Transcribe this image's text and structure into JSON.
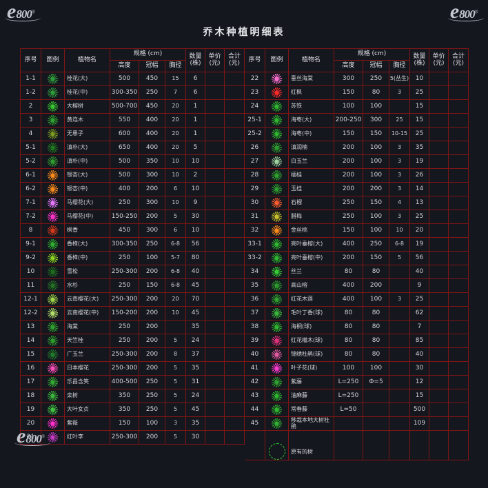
{
  "title": "乔木种植明细表",
  "watermark": {
    "e": "e",
    "num": "800",
    "reg": "®"
  },
  "columns": {
    "no": "序号",
    "legend": "图例",
    "name": "植物名",
    "spec": "规格 (cm)",
    "height": "高度",
    "crown": "冠幅",
    "dbh": "胸径",
    "qty": "数量\n(株)",
    "price": "单价\n(元)",
    "total": "合计\n(元)"
  },
  "row_fields": [
    "no",
    "name",
    "height",
    "crown",
    "dbh",
    "qty",
    "symbol_color",
    "symbol_type"
  ],
  "left_rows": [
    [
      "1-1",
      "桂花(大)",
      "500",
      "450",
      "15",
      "6",
      "#2e9b3a",
      "burst"
    ],
    [
      "1-2",
      "桂花(中)",
      "300-350",
      "250",
      "7",
      "6",
      "#2e9b3a",
      "burst"
    ],
    [
      "2",
      "大榕树",
      "500-700",
      "450",
      "20",
      "1",
      "#35c42d",
      "burst"
    ],
    [
      "3",
      "黄连木",
      "550",
      "400",
      "20",
      "1",
      "#2fa12f",
      "burst"
    ],
    [
      "4",
      "无患子",
      "600",
      "400",
      "20",
      "1",
      "#7a9b1f",
      "burst"
    ],
    [
      "5-1",
      "滇朴(大)",
      "650",
      "400",
      "20",
      "5",
      "#1f7a1f",
      "burst"
    ],
    [
      "5-2",
      "滇朴(中)",
      "500",
      "350",
      "10",
      "10",
      "#2e9b2e",
      "burst"
    ],
    [
      "6-1",
      "银杏(大)",
      "500",
      "300",
      "10",
      "2",
      "#ff8c1a",
      "burst"
    ],
    [
      "6-2",
      "银杏(中)",
      "400",
      "200",
      "6",
      "10",
      "#ff8c1a",
      "burst"
    ],
    [
      "7-1",
      "马缨花(大)",
      "250",
      "300",
      "10",
      "9",
      "#e878ff",
      "burst"
    ],
    [
      "7-2",
      "马缨花(中)",
      "150-250",
      "200",
      "5",
      "30",
      "#ff33cc",
      "burst"
    ],
    [
      "8",
      "枫香",
      "450",
      "300",
      "6",
      "10",
      "#d43a1a",
      "burst"
    ],
    [
      "9-1",
      "香樟(大)",
      "300-350",
      "250",
      "6-8",
      "56",
      "#2fae2f",
      "burst"
    ],
    [
      "9-2",
      "香樟(中)",
      "250",
      "100",
      "5-7",
      "80",
      "#8cd422",
      "burst"
    ],
    [
      "10",
      "雪松",
      "250-300",
      "200",
      "6-8",
      "40",
      "#1d6b1d",
      "burst"
    ],
    [
      "11",
      "水杉",
      "250",
      "150",
      "6-8",
      "45",
      "#237023",
      "burst"
    ],
    [
      "12-1",
      "云南樱花(大)",
      "250-300",
      "200",
      "20",
      "70",
      "#a0d448",
      "burst"
    ],
    [
      "12-2",
      "云南樱花(中)",
      "150-200",
      "200",
      "10",
      "45",
      "#b4e06a",
      "burst"
    ],
    [
      "13",
      "海棠",
      "250",
      "200",
      "",
      "35",
      "#2fa12f",
      "burst"
    ],
    [
      "14",
      "天竺桂",
      "250",
      "200",
      "5",
      "24",
      "#2e9b2e",
      "burst"
    ],
    [
      "15",
      "广玉兰",
      "250-300",
      "200",
      "8",
      "37",
      "#1f7a2a",
      "burst"
    ],
    [
      "16",
      "日本樱花",
      "250-300",
      "200",
      "5",
      "35",
      "#ff4db8",
      "burst"
    ],
    [
      "17",
      "乐昌含笑",
      "400-500",
      "250",
      "5",
      "31",
      "#33aa33",
      "burst"
    ],
    [
      "18",
      "栾树",
      "350",
      "250",
      "5",
      "24",
      "#3bb53b",
      "burst"
    ],
    [
      "19",
      "大叶女贞",
      "350",
      "250",
      "5",
      "45",
      "#41c241",
      "burst"
    ],
    [
      "20",
      "紫薇",
      "150",
      "100",
      "3",
      "35",
      "#ff2ecc",
      "burst"
    ],
    [
      "21",
      "红叶李",
      "250-300",
      "200",
      "5",
      "30",
      "#c23ac2",
      "burst"
    ]
  ],
  "right_rows": [
    [
      "22",
      "垂丝海棠",
      "300",
      "250",
      "5(丛生)",
      "10",
      "#ff6fd0",
      "burst"
    ],
    [
      "23",
      "红枫",
      "150",
      "80",
      "3",
      "25",
      "#ff2a2a",
      "burst"
    ],
    [
      "24",
      "苏铁",
      "100",
      "100",
      "",
      "15",
      "#2fb52f",
      "burst"
    ],
    [
      "25-1",
      "海枣(大)",
      "200-250",
      "300",
      "25",
      "15",
      "#2fb52f",
      "burst"
    ],
    [
      "25-2",
      "海枣(中)",
      "150",
      "150",
      "10-15",
      "25",
      "#2fb52f",
      "burst"
    ],
    [
      "26",
      "滇润楠",
      "200",
      "100",
      "3",
      "35",
      "#2e9b2e",
      "burst"
    ],
    [
      "27",
      "白玉兰",
      "200",
      "100",
      "3",
      "19",
      "#9fd49f",
      "burst"
    ],
    [
      "28",
      "缅桂",
      "200",
      "100",
      "3",
      "26",
      "#2fa12f",
      "burst"
    ],
    [
      "29",
      "玉桂",
      "200",
      "200",
      "3",
      "14",
      "#2e9b2e",
      "burst"
    ],
    [
      "30",
      "石榴",
      "250",
      "150",
      "4",
      "13",
      "#ff5c2e",
      "burst"
    ],
    [
      "31",
      "腊梅",
      "250",
      "100",
      "3",
      "25",
      "#c8c02a",
      "burst"
    ],
    [
      "32",
      "金丝桃",
      "150",
      "100",
      "10",
      "20",
      "#ff8c1a",
      "burst"
    ],
    [
      "33-1",
      "亮叶垂榕(大)",
      "400",
      "250",
      "6-8",
      "19",
      "#2fb52f",
      "burst"
    ],
    [
      "33-2",
      "亮叶垂榕(中)",
      "200",
      "150",
      "5",
      "56",
      "#2fb52f",
      "burst"
    ],
    [
      "34",
      "丝兰",
      "80",
      "80",
      "",
      "40",
      "#35cc35",
      "burst"
    ],
    [
      "35",
      "高山榕",
      "400",
      "200",
      "",
      "9",
      "#2e9b2e",
      "burst"
    ],
    [
      "36",
      "红花木莲",
      "400",
      "100",
      "3",
      "25",
      "#2fa12f",
      "burst"
    ],
    [
      "37",
      "毛叶丁香(球)",
      "80",
      "80",
      "",
      "62",
      "#3bb53b",
      "burst"
    ],
    [
      "38",
      "海桐(球)",
      "80",
      "80",
      "",
      "7",
      "#2fb52f",
      "burst"
    ],
    [
      "39",
      "红花檵木(球)",
      "80",
      "80",
      "",
      "85",
      "#e0317a",
      "burst"
    ],
    [
      "40",
      "锦绣杜鹃(球)",
      "80",
      "80",
      "",
      "40",
      "#e05aa0",
      "burst"
    ],
    [
      "41",
      "叶子花(球)",
      "100",
      "100",
      "",
      "30",
      "#ff3ad0",
      "burst"
    ],
    [
      "42",
      "紫藤",
      "L=250",
      "Φ=5",
      "",
      "12",
      "#2fa12f",
      "burst"
    ],
    [
      "43",
      "油麻藤",
      "L=250",
      "",
      "",
      "15",
      "#2fb52f",
      "burst"
    ],
    [
      "44",
      "常春藤",
      "L=50",
      "",
      "",
      "500",
      "#2fb52f",
      "burst"
    ],
    [
      "45",
      "移栽本地大树杜鹃",
      "",
      "",
      "",
      "109",
      "#2fae2f",
      "burst"
    ],
    [
      "",
      "原有的树",
      "",
      "",
      "",
      "",
      "#2fd42f",
      "dashed-big"
    ]
  ]
}
